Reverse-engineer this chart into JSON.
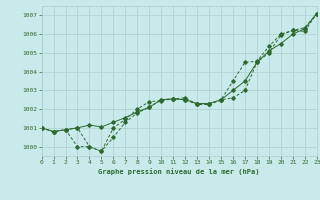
{
  "title": "Graphe pression niveau de la mer (hPa)",
  "background_color": "#c8eaea",
  "grid_color": "#aacccc",
  "line_color": "#2d6a2d",
  "x_min": 0,
  "x_max": 23,
  "y_min": 999.5,
  "y_max": 1007.5,
  "series_x": [
    0,
    1,
    2,
    3,
    4,
    5,
    6,
    7,
    8,
    9,
    10,
    11,
    12,
    13,
    14,
    15,
    16,
    17,
    18,
    19,
    20,
    21,
    22,
    23
  ],
  "values1": [
    1001.0,
    1000.8,
    1000.9,
    1000.0,
    1000.0,
    999.75,
    1000.5,
    1001.3,
    1001.8,
    1002.1,
    1002.5,
    1002.55,
    1002.5,
    1002.25,
    1002.25,
    1002.5,
    1002.6,
    1003.0,
    1004.5,
    1005.0,
    1005.95,
    1006.2,
    1006.15,
    1007.1
  ],
  "values2": [
    1001.0,
    1000.8,
    1000.9,
    1001.0,
    1001.15,
    1001.05,
    1001.3,
    1001.55,
    1001.85,
    1002.1,
    1002.5,
    1002.55,
    1002.5,
    1002.3,
    1002.3,
    1002.5,
    1003.0,
    1003.5,
    1004.5,
    1005.1,
    1005.5,
    1006.0,
    1006.3,
    1007.1
  ],
  "values3": [
    1001.0,
    1000.8,
    1000.9,
    1001.0,
    1000.0,
    999.75,
    1001.0,
    1001.45,
    1002.0,
    1002.4,
    1002.45,
    1002.55,
    1002.6,
    1002.25,
    1002.25,
    1002.5,
    1003.5,
    1004.5,
    1004.55,
    1005.35,
    1006.0,
    1006.2,
    1006.35,
    1007.1
  ],
  "yticks": [
    1000,
    1001,
    1002,
    1003,
    1004,
    1005,
    1006,
    1007
  ],
  "xticks": [
    0,
    1,
    2,
    3,
    4,
    5,
    6,
    7,
    8,
    9,
    10,
    11,
    12,
    13,
    14,
    15,
    16,
    17,
    18,
    19,
    20,
    21,
    22,
    23
  ]
}
